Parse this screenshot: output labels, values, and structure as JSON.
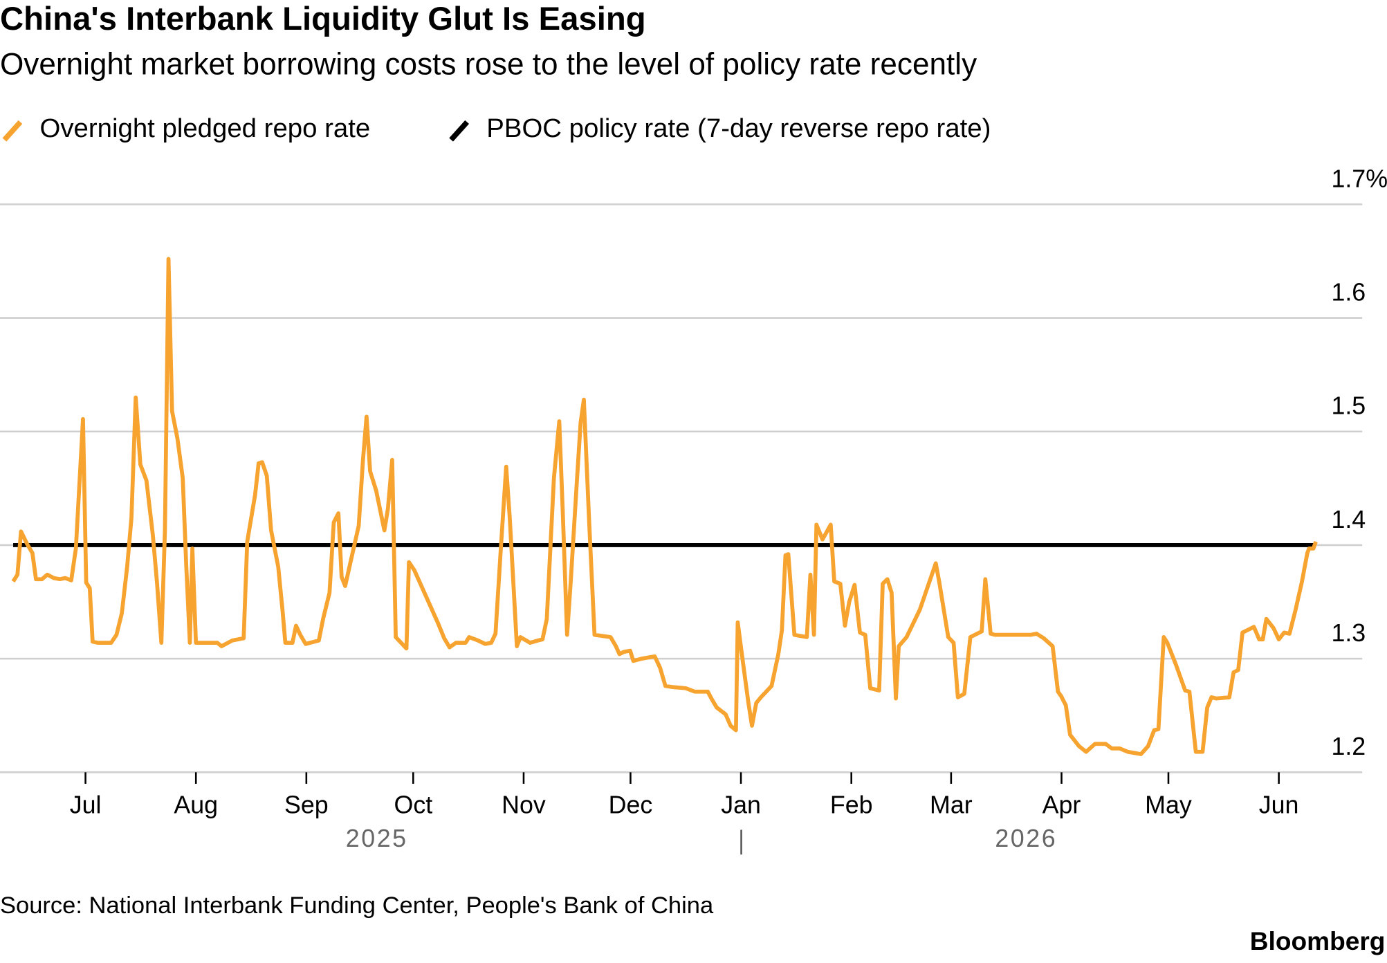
{
  "chart_data": {
    "type": "line",
    "title": "China's Interbank Liquidity Glut Is Easing",
    "subtitle": "Overnight market borrowing costs rose to the level of policy rate recently",
    "source": "Source: National Interbank Funding Center, People's Bank of China",
    "brand": "Bloomberg",
    "annotations": [
      "2025",
      "2026"
    ],
    "xlim": [
      -24,
      346
    ],
    "xticks": [
      {
        "value": 0,
        "label": "Jul"
      },
      {
        "value": 31,
        "label": "Aug"
      },
      {
        "value": 62,
        "label": "Sep"
      },
      {
        "value": 92,
        "label": "Oct"
      },
      {
        "value": 123,
        "label": "Nov"
      },
      {
        "value": 153,
        "label": "Dec"
      },
      {
        "value": 184,
        "label": "Jan"
      },
      {
        "value": 215,
        "label": "Feb"
      },
      {
        "value": 243,
        "label": "Mar"
      },
      {
        "value": 274,
        "label": "Apr"
      },
      {
        "value": 304,
        "label": "May"
      },
      {
        "value": 335,
        "label": "Jun"
      }
    ],
    "ylim": [
      1.2,
      1.7
    ],
    "yticks": [
      1.2,
      1.3,
      1.4,
      1.5,
      1.6,
      {
        "value": 1.7,
        "label": "1.7%"
      }
    ],
    "grid": true,
    "legend": "top-left",
    "series": [
      {
        "name": "Overnight pledged repo rate",
        "color": "#f7a330",
        "x": [
          -20.3,
          -19.1,
          -18.1,
          -16.4,
          -14.9,
          -13.9,
          -12.2,
          -10.7,
          -8.9,
          -7.2,
          -5.7,
          -4.0,
          -2.7,
          -0.7,
          0.2,
          1.2,
          2.0,
          3.5,
          7.2,
          8.7,
          10.2,
          11.7,
          12.9,
          14.1,
          15.4,
          17.1,
          18.9,
          20.1,
          21.3,
          22.3,
          23.3,
          24.3,
          25.8,
          27.3,
          28.3,
          29.3,
          30.0,
          31.0,
          37.0,
          38.2,
          41.2,
          44.4,
          45.4,
          47.6,
          48.6,
          49.6,
          50.9,
          52.1,
          54.1,
          55.3,
          56.1,
          58.1,
          59.1,
          60.3,
          61.8,
          65.5,
          66.7,
          68.5,
          69.7,
          71.0,
          71.9,
          72.9,
          74.4,
          76.7,
          77.9,
          78.9,
          79.9,
          81.6,
          83.9,
          84.9,
          86.1,
          87.1,
          90.1,
          90.8,
          92.3,
          95.3,
          99.0,
          100.7,
          102.2,
          104.0,
          106.7,
          107.7,
          110.2,
          112.2,
          113.9,
          115.1,
          116.6,
          118.1,
          119.1,
          121.1,
          122.1,
          124.8,
          127.0,
          128.3,
          129.5,
          131.5,
          133.0,
          134.0,
          135.2,
          136.2,
          138.0,
          139.0,
          139.9,
          141.4,
          142.9,
          147.4,
          148.9,
          149.9,
          151.1,
          152.9,
          153.8,
          156.1,
          159.8,
          161.3,
          162.8,
          164.8,
          168.5,
          171.0,
          174.7,
          175.7,
          177.2,
          179.7,
          181.1,
          182.6,
          183.1,
          184.6,
          186.1,
          187.1,
          188.3,
          189.6,
          191.1,
          192.6,
          194.5,
          195.5,
          196.5,
          197.3,
          199.0,
          202.5,
          203.5,
          204.5,
          205.2,
          206.9,
          209.2,
          210.2,
          211.9,
          213.2,
          214.4,
          215.9,
          217.4,
          218.9,
          220.3,
          222.8,
          223.8,
          225.1,
          226.3,
          227.5,
          228.3,
          230.5,
          234.2,
          238.7,
          239.7,
          242.2,
          243.7,
          244.9,
          246.7,
          248.4,
          251.6,
          252.6,
          254.1,
          255.3,
          260.3,
          265.3,
          267.0,
          269.0,
          271.5,
          273.0,
          273.9,
          275.2,
          276.4,
          278.9,
          280.9,
          283.4,
          286.4,
          288.1,
          290.3,
          292.6,
          296.3,
          298.3,
          300.0,
          301.2,
          302.7,
          303.7,
          306.2,
          308.7,
          309.9,
          311.7,
          313.6,
          314.9,
          316.1,
          317.4,
          321.1,
          322.3,
          323.6,
          324.8,
          326.1,
          328.0,
          329.5,
          330.5,
          331.5,
          333.5,
          335.0,
          336.5,
          338.0,
          339.7,
          341.5,
          343.0,
          343.5,
          344.7,
          345.4
        ],
        "values": [
          1.368,
          1.374,
          1.412,
          1.401,
          1.393,
          1.37,
          1.37,
          1.374,
          1.371,
          1.37,
          1.371,
          1.369,
          1.397,
          1.511,
          1.367,
          1.362,
          1.315,
          1.314,
          1.314,
          1.321,
          1.34,
          1.381,
          1.424,
          1.53,
          1.471,
          1.457,
          1.409,
          1.366,
          1.314,
          1.413,
          1.652,
          1.518,
          1.494,
          1.459,
          1.381,
          1.314,
          1.397,
          1.314,
          1.314,
          1.311,
          1.316,
          1.318,
          1.403,
          1.444,
          1.472,
          1.473,
          1.461,
          1.413,
          1.381,
          1.343,
          1.314,
          1.314,
          1.329,
          1.321,
          1.313,
          1.316,
          1.335,
          1.358,
          1.42,
          1.428,
          1.372,
          1.364,
          1.385,
          1.417,
          1.475,
          1.513,
          1.465,
          1.448,
          1.413,
          1.432,
          1.475,
          1.319,
          1.309,
          1.385,
          1.378,
          1.357,
          1.331,
          1.318,
          1.31,
          1.314,
          1.314,
          1.319,
          1.316,
          1.313,
          1.314,
          1.322,
          1.397,
          1.469,
          1.424,
          1.311,
          1.319,
          1.314,
          1.316,
          1.317,
          1.335,
          1.459,
          1.509,
          1.428,
          1.321,
          1.367,
          1.459,
          1.508,
          1.528,
          1.42,
          1.321,
          1.319,
          1.311,
          1.304,
          1.306,
          1.307,
          1.298,
          1.3,
          1.302,
          1.292,
          1.276,
          1.275,
          1.274,
          1.271,
          1.271,
          1.265,
          1.257,
          1.251,
          1.241,
          1.237,
          1.332,
          1.296,
          1.261,
          1.241,
          1.261,
          1.266,
          1.271,
          1.276,
          1.304,
          1.325,
          1.391,
          1.392,
          1.321,
          1.319,
          1.374,
          1.321,
          1.418,
          1.405,
          1.418,
          1.368,
          1.366,
          1.329,
          1.35,
          1.365,
          1.323,
          1.321,
          1.274,
          1.272,
          1.366,
          1.37,
          1.358,
          1.265,
          1.311,
          1.319,
          1.343,
          1.384,
          1.367,
          1.319,
          1.314,
          1.266,
          1.269,
          1.319,
          1.324,
          1.37,
          1.322,
          1.321,
          1.321,
          1.321,
          1.322,
          1.318,
          1.311,
          1.271,
          1.267,
          1.259,
          1.233,
          1.223,
          1.218,
          1.225,
          1.225,
          1.221,
          1.221,
          1.218,
          1.216,
          1.223,
          1.237,
          1.238,
          1.319,
          1.314,
          1.294,
          1.272,
          1.271,
          1.218,
          1.218,
          1.257,
          1.266,
          1.265,
          1.266,
          1.288,
          1.29,
          1.323,
          1.325,
          1.328,
          1.317,
          1.317,
          1.335,
          1.327,
          1.317,
          1.323,
          1.322,
          1.343,
          1.368,
          1.393,
          1.397,
          1.397,
          1.403
        ]
      },
      {
        "name": "PBOC policy rate (7-day reverse repo rate)",
        "color": "#000000",
        "x": [
          -20.3,
          345.4
        ],
        "values": [
          1.4,
          1.4
        ]
      }
    ]
  }
}
